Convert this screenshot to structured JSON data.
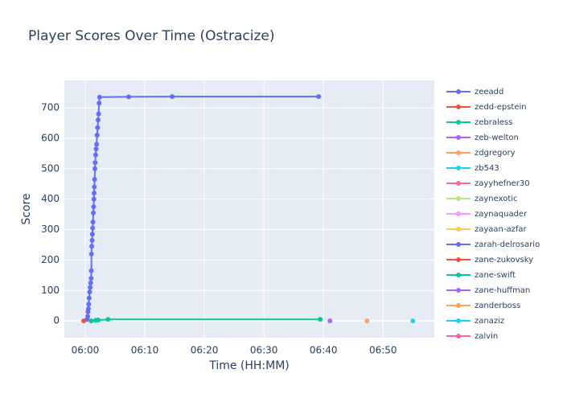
{
  "chart_data": {
    "type": "line",
    "title": "Player Scores Over Time (Ostracize)",
    "x_label": "Time (HH:MM)",
    "y_label": "Score",
    "xlim": [
      "05:56:30",
      "06:58:36"
    ],
    "xticks": [
      "06:00",
      "06:10",
      "06:20",
      "06:30",
      "06:40",
      "06:50"
    ],
    "ylim": [
      -55,
      790
    ],
    "yticks": [
      0,
      100,
      200,
      300,
      400,
      500,
      600,
      700
    ],
    "grid": true,
    "legend": "right",
    "series": [
      {
        "name": "zeeadd",
        "color": "#636efa",
        "x": [
          "06:00:20",
          "06:00:25",
          "06:00:28",
          "06:00:32",
          "06:00:35",
          "06:00:40",
          "06:00:45",
          "06:00:50",
          "06:00:55",
          "06:01:00",
          "06:01:02",
          "06:01:03",
          "06:01:06",
          "06:01:10",
          "06:01:12",
          "06:01:15",
          "06:01:18",
          "06:01:22",
          "06:01:25",
          "06:01:28",
          "06:01:30",
          "06:01:32",
          "06:01:35",
          "06:01:38",
          "06:01:40",
          "06:01:45",
          "06:01:50",
          "06:01:55",
          "06:02:00",
          "06:02:05",
          "06:02:10",
          "06:02:15",
          "06:02:20",
          "06:02:25",
          "06:07:18",
          "06:14:36",
          "06:39:11"
        ],
        "values": [
          5,
          15,
          30,
          40,
          55,
          75,
          95,
          110,
          125,
          140,
          165,
          220,
          245,
          265,
          285,
          305,
          325,
          355,
          375,
          400,
          420,
          440,
          465,
          500,
          520,
          545,
          565,
          580,
          610,
          635,
          660,
          680,
          715,
          735,
          736,
          737,
          737
        ]
      },
      {
        "name": "zedd-epstein",
        "color": "#EF553B",
        "x": [
          "05:59:45"
        ],
        "values": [
          0
        ]
      },
      {
        "name": "zebraless",
        "color": "#00cc96",
        "x": [
          "06:01:00",
          "06:01:45",
          "06:02:10",
          "06:03:50",
          "06:39:27"
        ],
        "values": [
          0,
          2,
          3,
          5,
          5
        ]
      },
      {
        "name": "zeb-welton",
        "color": "#ab63fa",
        "x": [
          "06:41:05"
        ],
        "values": [
          0
        ]
      },
      {
        "name": "zdgregory",
        "color": "#FFA15A",
        "x": [
          "06:47:18"
        ],
        "values": [
          0
        ]
      },
      {
        "name": "zb543",
        "color": "#19d3f3",
        "x": [
          "06:55:00"
        ],
        "values": [
          0
        ]
      },
      {
        "name": "zayyhefner30",
        "color": "#FF6692",
        "x": [],
        "values": []
      },
      {
        "name": "zaynexotic",
        "color": "#B6E880",
        "x": [],
        "values": []
      },
      {
        "name": "zaynaquader",
        "color": "#FF97FF",
        "x": [],
        "values": []
      },
      {
        "name": "zayaan-azfar",
        "color": "#FECB52",
        "x": [],
        "values": []
      },
      {
        "name": "zarah-delrosario",
        "color": "#636efa",
        "x": [],
        "values": []
      },
      {
        "name": "zane-zukovsky",
        "color": "#EF553B",
        "x": [],
        "values": []
      },
      {
        "name": "zane-swift",
        "color": "#00cc96",
        "x": [],
        "values": []
      },
      {
        "name": "zane-huffman",
        "color": "#ab63fa",
        "x": [],
        "values": []
      },
      {
        "name": "zanderboss",
        "color": "#FFA15A",
        "x": [],
        "values": []
      },
      {
        "name": "zanaziz",
        "color": "#19d3f3",
        "x": [],
        "values": []
      },
      {
        "name": "zalvin",
        "color": "#FF6692",
        "x": [],
        "values": []
      }
    ]
  }
}
